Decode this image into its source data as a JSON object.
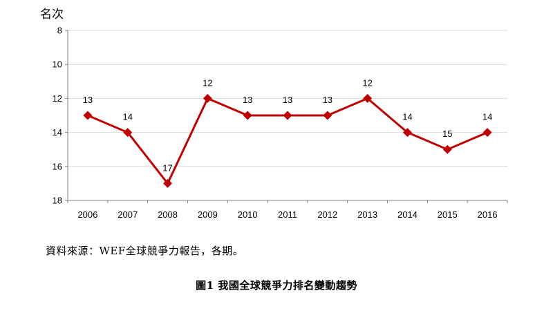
{
  "chart_data": {
    "type": "line",
    "ylabel": "名次",
    "ylim": [
      8,
      18
    ],
    "y_reversed": true,
    "y_ticks": [
      "8",
      "10",
      "12",
      "14",
      "16",
      "18"
    ],
    "categories": [
      "2006",
      "2007",
      "2008",
      "2009",
      "2010",
      "2011",
      "2012",
      "2013",
      "2014",
      "2015",
      "2016"
    ],
    "series": [
      {
        "values": [
          13,
          14,
          17,
          12,
          13,
          13,
          13,
          12,
          14,
          15,
          14
        ],
        "data_labels": true
      }
    ],
    "marker": "diamond",
    "grid": "horizontal",
    "colors": {
      "line": "#C00000",
      "grid": "#D9D9D9",
      "axis": "#808080"
    }
  },
  "source_note": "資料來源：WEF全球競爭力報告，各期。",
  "figure_caption": "圖1  我國全球競爭力排名變動趨勢"
}
